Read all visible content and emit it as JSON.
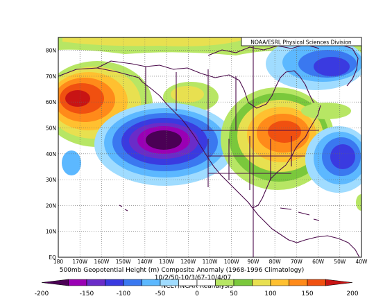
{
  "credit": "NOAA/ESRL Physical Sciences Division",
  "caption_line1": "500mb Geopotential Height (m) Composite Anomaly (1968-1996 Climatology)",
  "caption_line2": "10/2/50-10/3/67-10/4/07",
  "caption_source": "NCEP/NCAR Reanalysis",
  "lat_labels": [
    "80N",
    "70N",
    "60N",
    "50N",
    "40N",
    "30N",
    "20N",
    "10N",
    "EQ"
  ],
  "lon_labels": [
    "180",
    "170W",
    "160W",
    "150W",
    "140W",
    "130W",
    "120W",
    "110W",
    "100W",
    "90W",
    "80W",
    "70W",
    "60W",
    "50W",
    "40W"
  ],
  "colorbar": {
    "ticks": [
      "-200",
      "-150",
      "-100",
      "-50",
      "0",
      "50",
      "100",
      "150",
      "200"
    ],
    "colors": [
      "#4b0055",
      "#9a00b4",
      "#6a2cc8",
      "#3a3ae0",
      "#3a78f0",
      "#5cb8ff",
      "#a0dcff",
      "#ffffff",
      "#ffffff",
      "#b7e664",
      "#7ac83c",
      "#e8e050",
      "#ffc030",
      "#ff8a1a",
      "#f05010",
      "#c81414"
    ]
  },
  "map_extent": {
    "lon": [
      180,
      40
    ],
    "lat": [
      0,
      85
    ]
  }
}
